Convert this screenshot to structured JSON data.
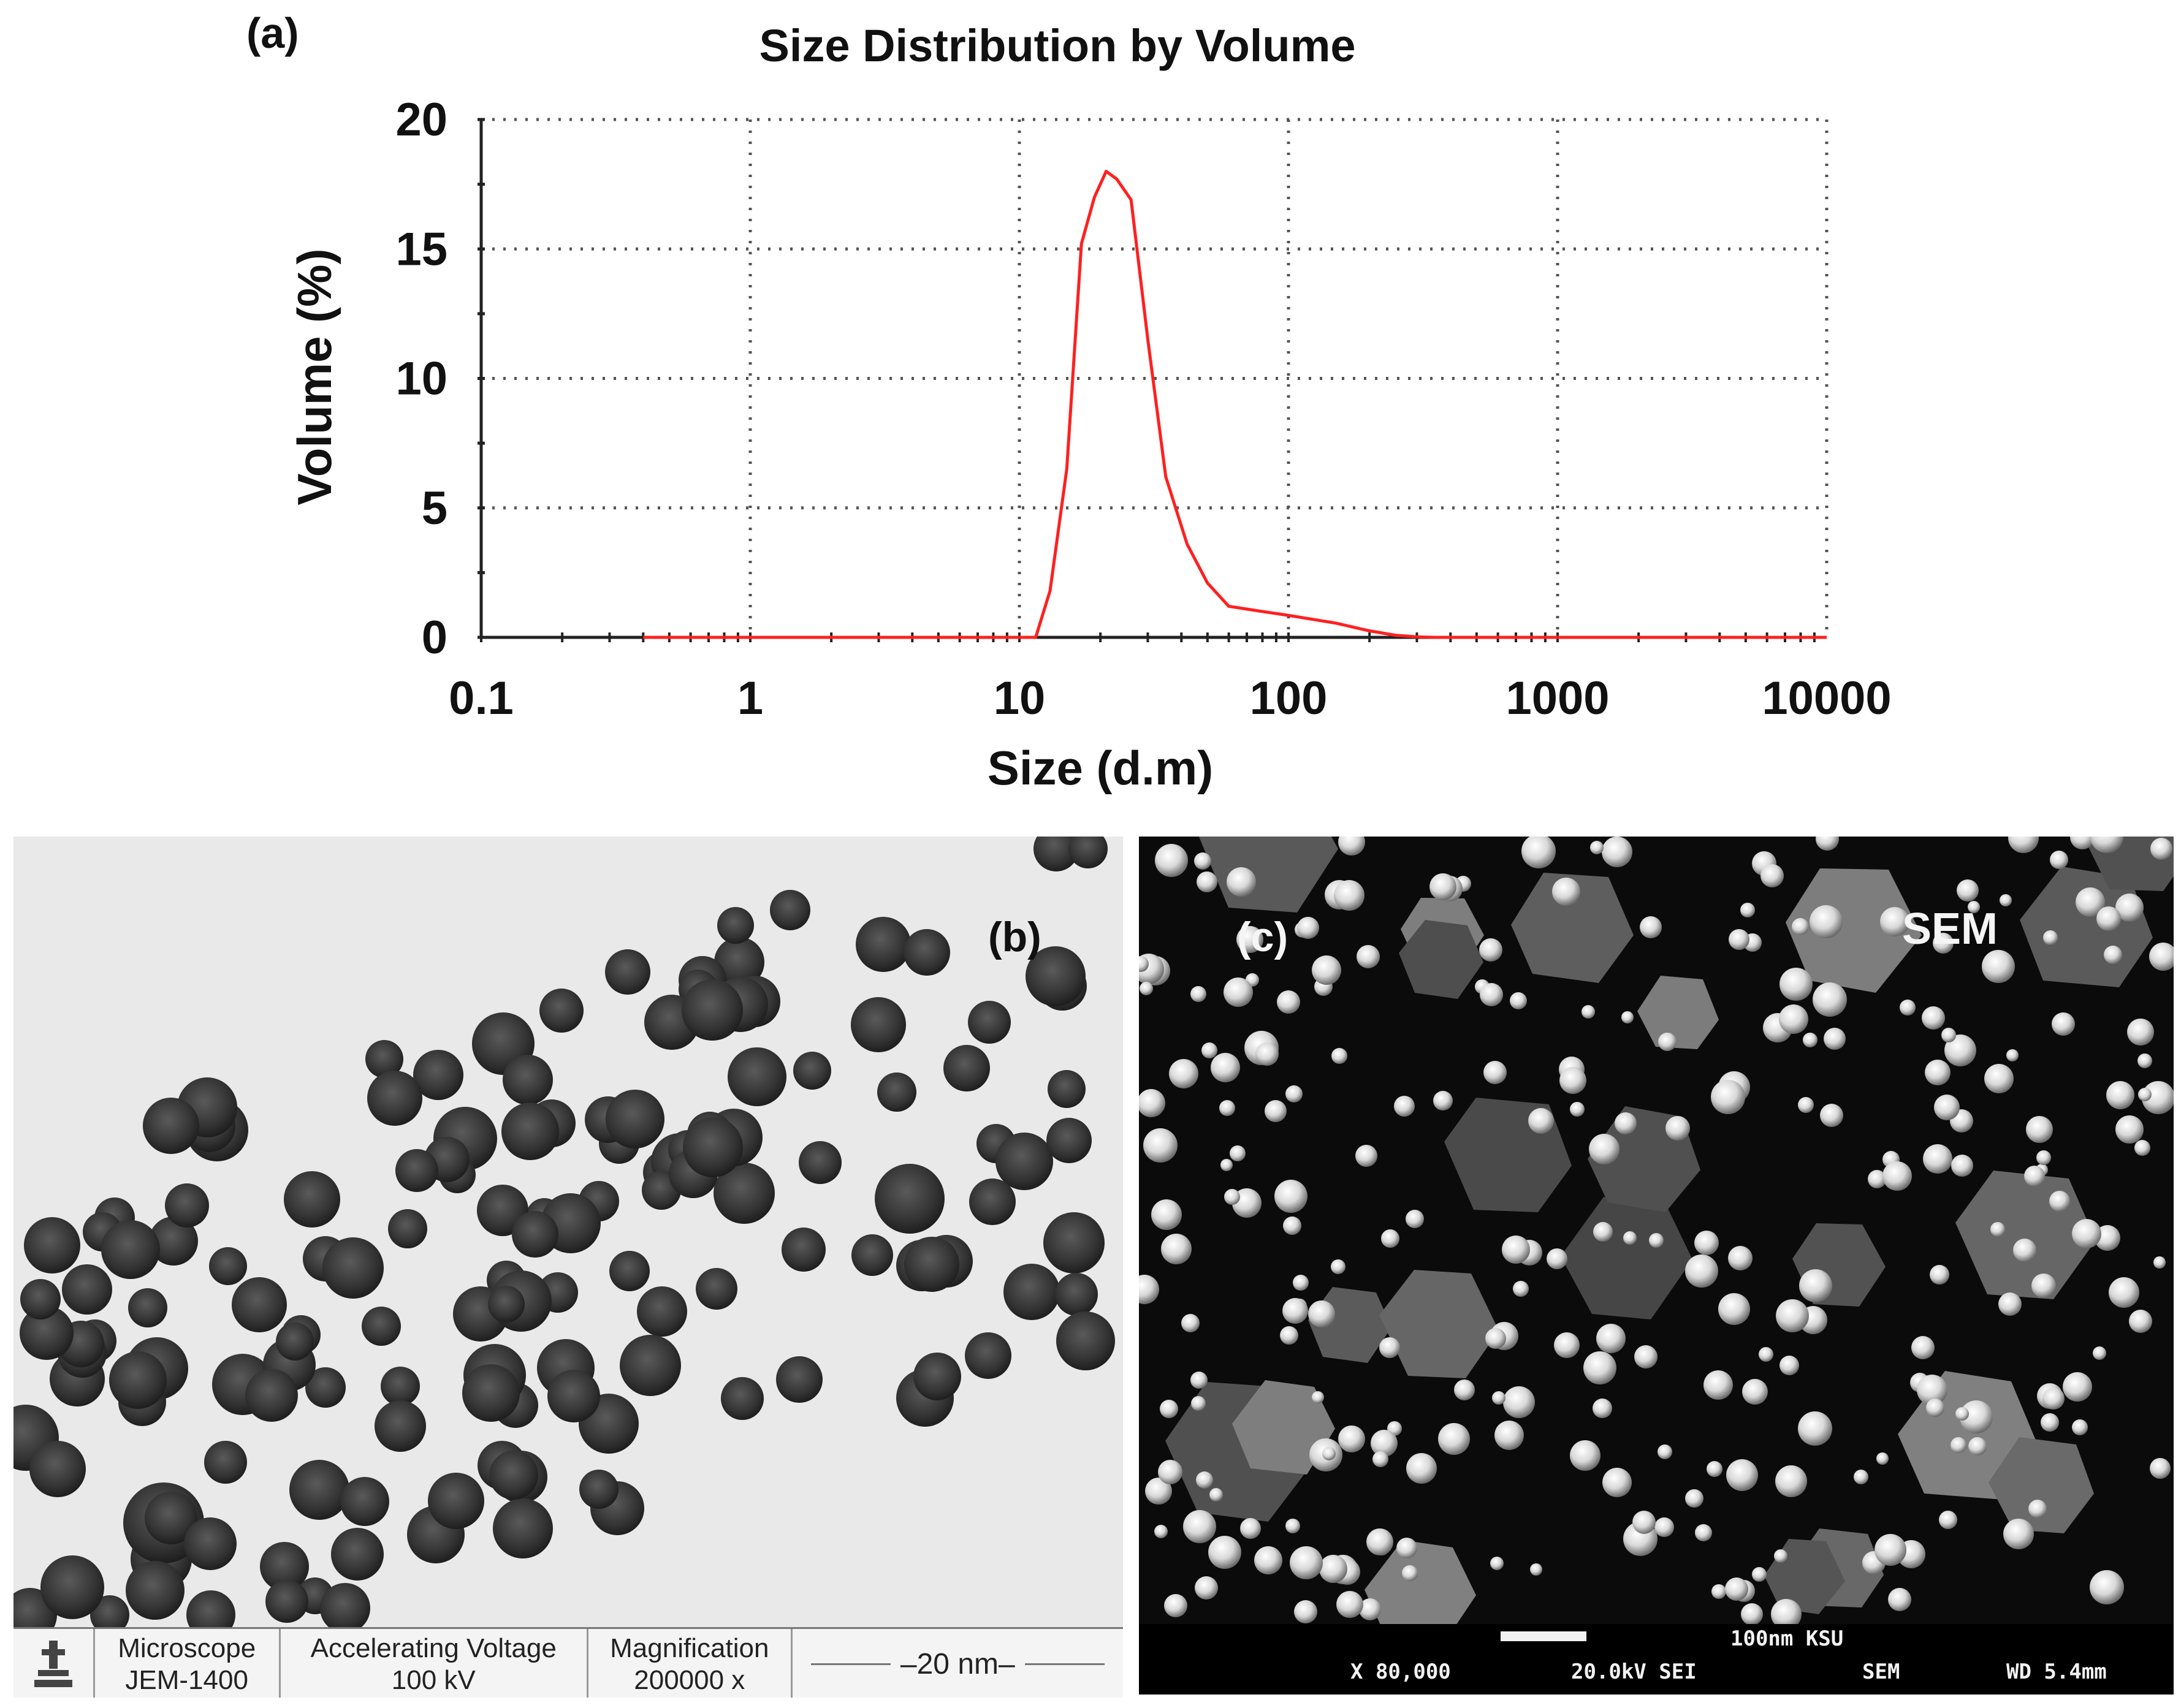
{
  "panel_a": {
    "label": "(a)"
  },
  "panel_b": {
    "label": "(b)",
    "infobar": {
      "microscope_title": "Microscope",
      "microscope_value": "JEM-1400",
      "voltage_title": "Accelerating Voltage",
      "voltage_value": "100 kV",
      "magnification_title": "Magnification",
      "magnification_value": "200000 x",
      "scale_label": "20 nm"
    }
  },
  "panel_c": {
    "label": "(c)",
    "mode_label": "SEM",
    "infobar": {
      "scale_text": "100nm KSU",
      "magnification": "X 80,000",
      "voltage": "20.0kV SEI",
      "mode": "SEM",
      "working_distance": "WD 5.4mm"
    }
  },
  "chart_data": {
    "type": "line",
    "title": "Size Distribution by Volume",
    "xlabel": "Size (d.m)",
    "ylabel": "Volume (%)",
    "xscale": "log",
    "xlim": [
      0.1,
      10000
    ],
    "ylim": [
      0,
      20
    ],
    "xticks": [
      "0.1",
      "1",
      "10",
      "100",
      "1000",
      "10000"
    ],
    "yticks": [
      "0",
      "5",
      "10",
      "15",
      "20"
    ],
    "grid": true,
    "series": [
      {
        "name": "Volume",
        "color": "#ff2020",
        "x": [
          0.4,
          1,
          5,
          11.5,
          13,
          15,
          17,
          19,
          21,
          23,
          26,
          30,
          35,
          42,
          50,
          60,
          80,
          100,
          150,
          200,
          250,
          300,
          350,
          500,
          1000,
          10000
        ],
        "y": [
          0,
          0,
          0,
          0,
          1.8,
          6.5,
          15.2,
          17.0,
          18.0,
          17.7,
          16.9,
          11.5,
          6.2,
          3.6,
          2.1,
          1.2,
          1.0,
          0.85,
          0.55,
          0.25,
          0.08,
          0.02,
          0,
          0,
          0,
          0
        ]
      }
    ]
  },
  "colors": {
    "line": "#ff2020",
    "axis": "#222222",
    "grid": "#555555",
    "tem_background": "#e9e9e9",
    "sem_background": "#0b0b0b"
  }
}
